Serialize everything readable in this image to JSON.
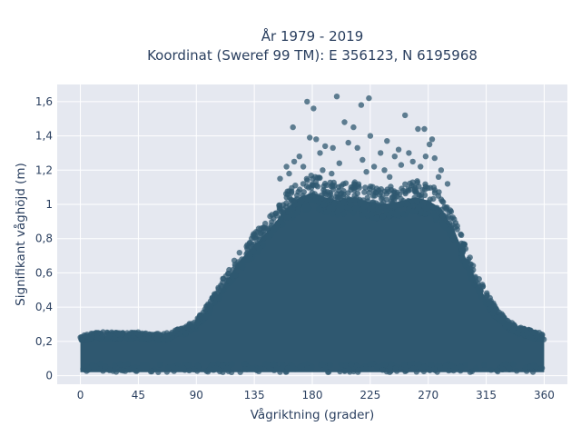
{
  "chart_data": {
    "type": "scatter",
    "title_lines": [
      "År 1979 - 2019",
      "Koordinat (Sweref 99 TM): E 356123, N 6195968"
    ],
    "xlabel": "Vågriktning (grader)",
    "ylabel": "Signifikant våghöjd (m)",
    "xlim": [
      -18,
      378
    ],
    "ylim": [
      -0.05,
      1.7
    ],
    "x_ticks": [
      0,
      45,
      90,
      135,
      180,
      225,
      270,
      315,
      360
    ],
    "y_ticks": [
      0,
      0.2,
      0.4,
      0.6,
      0.8,
      1,
      1.2,
      1.4,
      1.6
    ],
    "y_tick_labels": [
      "0",
      "0,2",
      "0,4",
      "0,6",
      "0,8",
      "1",
      "1,2",
      "1,4",
      "1,6"
    ],
    "grid": true,
    "plot_bg": "#e5e8f0",
    "marker_color": "#2f5870",
    "upper_envelope": [
      [
        0,
        0.24
      ],
      [
        15,
        0.25
      ],
      [
        30,
        0.25
      ],
      [
        45,
        0.25
      ],
      [
        60,
        0.24
      ],
      [
        70,
        0.25
      ],
      [
        80,
        0.28
      ],
      [
        90,
        0.32
      ],
      [
        100,
        0.42
      ],
      [
        110,
        0.55
      ],
      [
        120,
        0.68
      ],
      [
        130,
        0.78
      ],
      [
        140,
        0.86
      ],
      [
        150,
        0.95
      ],
      [
        160,
        1.05
      ],
      [
        170,
        1.12
      ],
      [
        180,
        1.15
      ],
      [
        190,
        1.12
      ],
      [
        200,
        1.1
      ],
      [
        210,
        1.12
      ],
      [
        220,
        1.1
      ],
      [
        230,
        1.08
      ],
      [
        240,
        1.08
      ],
      [
        250,
        1.1
      ],
      [
        260,
        1.12
      ],
      [
        270,
        1.1
      ],
      [
        280,
        1.05
      ],
      [
        290,
        0.92
      ],
      [
        300,
        0.72
      ],
      [
        310,
        0.55
      ],
      [
        320,
        0.42
      ],
      [
        330,
        0.33
      ],
      [
        340,
        0.28
      ],
      [
        350,
        0.26
      ],
      [
        360,
        0.24
      ]
    ],
    "outliers": [
      [
        176,
        1.6
      ],
      [
        181,
        1.56
      ],
      [
        199,
        1.63
      ],
      [
        218,
        1.58
      ],
      [
        224,
        1.62
      ],
      [
        252,
        1.52
      ],
      [
        165,
        1.45
      ],
      [
        178,
        1.39
      ],
      [
        205,
        1.48
      ],
      [
        212,
        1.45
      ],
      [
        262,
        1.44
      ],
      [
        267,
        1.44
      ],
      [
        183,
        1.38
      ],
      [
        190,
        1.34
      ],
      [
        208,
        1.36
      ],
      [
        225,
        1.4
      ],
      [
        238,
        1.37
      ],
      [
        247,
        1.32
      ],
      [
        271,
        1.35
      ],
      [
        273,
        1.38
      ],
      [
        170,
        1.28
      ],
      [
        186,
        1.3
      ],
      [
        196,
        1.33
      ],
      [
        215,
        1.33
      ],
      [
        233,
        1.3
      ],
      [
        244,
        1.28
      ],
      [
        255,
        1.3
      ],
      [
        268,
        1.28
      ],
      [
        275,
        1.27
      ],
      [
        160,
        1.22
      ],
      [
        166,
        1.25
      ],
      [
        173,
        1.22
      ],
      [
        188,
        1.2
      ],
      [
        201,
        1.24
      ],
      [
        219,
        1.26
      ],
      [
        228,
        1.22
      ],
      [
        236,
        1.2
      ],
      [
        249,
        1.23
      ],
      [
        258,
        1.25
      ],
      [
        264,
        1.22
      ],
      [
        280,
        1.2
      ],
      [
        285,
        1.12
      ],
      [
        155,
        1.15
      ],
      [
        162,
        1.18
      ],
      [
        195,
        1.18
      ],
      [
        222,
        1.19
      ],
      [
        240,
        1.16
      ],
      [
        278,
        1.16
      ]
    ]
  }
}
